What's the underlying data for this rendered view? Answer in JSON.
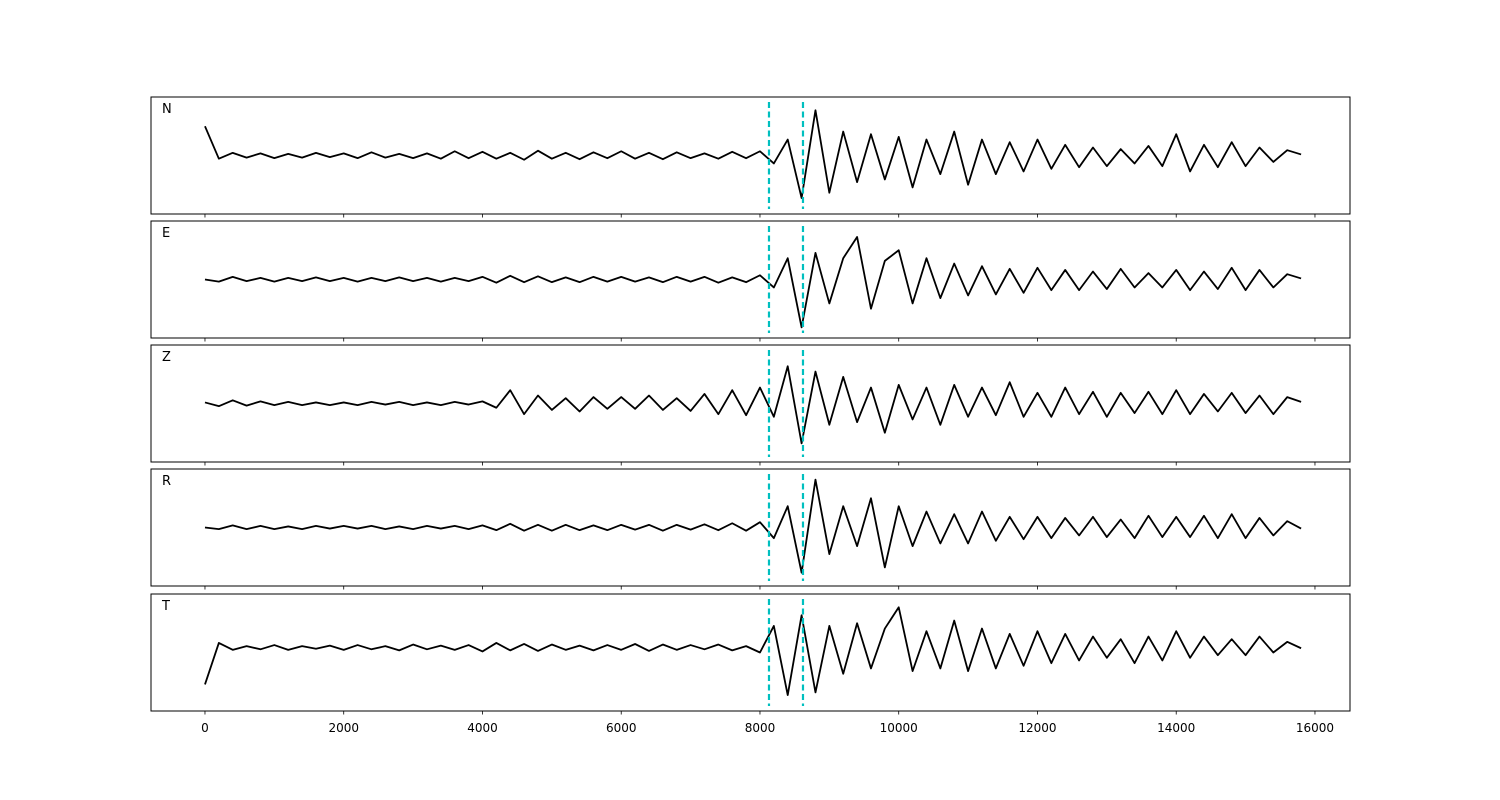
{
  "chart_data": [
    {
      "type": "line",
      "label": "N",
      "color": "#000000",
      "markers": [
        8130,
        8620
      ],
      "marker_color": "#00bfbf",
      "xlim": [
        -778,
        16505
      ],
      "ylim": [
        -1.1,
        1.1
      ],
      "xticks": [
        0,
        2000,
        4000,
        6000,
        8000,
        10000,
        12000,
        14000,
        16000
      ],
      "x": [
        0,
        200,
        400,
        600,
        800,
        1000,
        1200,
        1400,
        1600,
        1800,
        2000,
        2200,
        2400,
        2600,
        2800,
        3000,
        3200,
        3400,
        3600,
        3800,
        4000,
        4200,
        4400,
        4600,
        4800,
        5000,
        5200,
        5400,
        5600,
        5800,
        6000,
        6200,
        6400,
        6600,
        6800,
        7000,
        7200,
        7400,
        7600,
        7800,
        8000,
        8200,
        8400,
        8600,
        8800,
        9000,
        9200,
        9400,
        9600,
        9800,
        10000,
        10200,
        10400,
        10600,
        10800,
        11000,
        11200,
        11400,
        11600,
        11800,
        12000,
        12200,
        12400,
        12600,
        12800,
        13000,
        13200,
        13400,
        13600,
        13800,
        14000,
        14200,
        14400,
        14600,
        14800,
        15000,
        15200,
        15400,
        15600,
        15800
      ],
      "values": [
        0.55,
        -0.06,
        0.05,
        -0.04,
        0.04,
        -0.05,
        0.03,
        -0.04,
        0.05,
        -0.03,
        0.04,
        -0.05,
        0.06,
        -0.04,
        0.03,
        -0.05,
        0.04,
        -0.06,
        0.08,
        -0.05,
        0.07,
        -0.06,
        0.05,
        -0.08,
        0.09,
        -0.06,
        0.05,
        -0.07,
        0.06,
        -0.05,
        0.08,
        -0.06,
        0.05,
        -0.07,
        0.06,
        -0.05,
        0.04,
        -0.06,
        0.07,
        -0.05,
        0.08,
        -0.15,
        0.3,
        -0.8,
        0.85,
        -0.7,
        0.45,
        -0.5,
        0.4,
        -0.45,
        0.35,
        -0.6,
        0.3,
        -0.35,
        0.45,
        -0.55,
        0.3,
        -0.35,
        0.25,
        -0.3,
        0.3,
        -0.25,
        0.2,
        -0.22,
        0.15,
        -0.2,
        0.12,
        -0.15,
        0.18,
        -0.2,
        0.4,
        -0.3,
        0.2,
        -0.22,
        0.25,
        -0.2,
        0.15,
        -0.12,
        0.1,
        0.02
      ]
    },
    {
      "type": "line",
      "label": "E",
      "color": "#000000",
      "markers": [
        8130,
        8620
      ],
      "marker_color": "#00bfbf",
      "xlim": [
        -778,
        16505
      ],
      "ylim": [
        -1.1,
        1.1
      ],
      "xticks": [
        0,
        2000,
        4000,
        6000,
        8000,
        10000,
        12000,
        14000,
        16000
      ],
      "x": [
        0,
        200,
        400,
        600,
        800,
        1000,
        1200,
        1400,
        1600,
        1800,
        2000,
        2200,
        2400,
        2600,
        2800,
        3000,
        3200,
        3400,
        3600,
        3800,
        4000,
        4200,
        4400,
        4600,
        4800,
        5000,
        5200,
        5400,
        5600,
        5800,
        6000,
        6200,
        6400,
        6600,
        6800,
        7000,
        7200,
        7400,
        7600,
        7800,
        8000,
        8200,
        8400,
        8600,
        8800,
        9000,
        9200,
        9400,
        9600,
        9800,
        10000,
        10200,
        10400,
        10600,
        10800,
        11000,
        11200,
        11400,
        11600,
        11800,
        12000,
        12200,
        12400,
        12600,
        12800,
        13000,
        13200,
        13400,
        13600,
        13800,
        14000,
        14200,
        14400,
        14600,
        14800,
        15000,
        15200,
        15400,
        15600,
        15800
      ],
      "values": [
        0.0,
        -0.04,
        0.05,
        -0.03,
        0.03,
        -0.04,
        0.03,
        -0.03,
        0.04,
        -0.03,
        0.03,
        -0.04,
        0.03,
        -0.03,
        0.04,
        -0.03,
        0.03,
        -0.04,
        0.03,
        -0.03,
        0.05,
        -0.06,
        0.07,
        -0.05,
        0.06,
        -0.05,
        0.04,
        -0.05,
        0.05,
        -0.04,
        0.05,
        -0.04,
        0.04,
        -0.05,
        0.05,
        -0.04,
        0.05,
        -0.06,
        0.04,
        -0.05,
        0.08,
        -0.15,
        0.4,
        -0.9,
        0.5,
        -0.45,
        0.4,
        0.8,
        -0.55,
        0.35,
        0.55,
        -0.45,
        0.4,
        -0.35,
        0.3,
        -0.3,
        0.25,
        -0.28,
        0.2,
        -0.25,
        0.22,
        -0.2,
        0.18,
        -0.2,
        0.15,
        -0.18,
        0.2,
        -0.15,
        0.12,
        -0.15,
        0.18,
        -0.2,
        0.15,
        -0.18,
        0.22,
        -0.2,
        0.18,
        -0.15,
        0.1,
        0.02
      ]
    },
    {
      "type": "line",
      "label": "Z",
      "color": "#000000",
      "markers": [
        8130,
        8620
      ],
      "marker_color": "#00bfbf",
      "xlim": [
        -778,
        16505
      ],
      "ylim": [
        -1.1,
        1.1
      ],
      "xticks": [
        0,
        2000,
        4000,
        6000,
        8000,
        10000,
        12000,
        14000,
        16000
      ],
      "x": [
        0,
        200,
        400,
        600,
        800,
        1000,
        1200,
        1400,
        1600,
        1800,
        2000,
        2200,
        2400,
        2600,
        2800,
        3000,
        3200,
        3400,
        3600,
        3800,
        4000,
        4200,
        4400,
        4600,
        4800,
        5000,
        5200,
        5400,
        5600,
        5800,
        6000,
        6200,
        6400,
        6600,
        6800,
        7000,
        7200,
        7400,
        7600,
        7800,
        8000,
        8200,
        8400,
        8600,
        8800,
        9000,
        9200,
        9400,
        9600,
        9800,
        10000,
        10200,
        10400,
        10600,
        10800,
        11000,
        11200,
        11400,
        11600,
        11800,
        12000,
        12200,
        12400,
        12600,
        12800,
        13000,
        13200,
        13400,
        13600,
        13800,
        14000,
        14200,
        14400,
        14600,
        14800,
        15000,
        15200,
        15400,
        15600,
        15800
      ],
      "values": [
        0.02,
        -0.05,
        0.06,
        -0.04,
        0.04,
        -0.03,
        0.03,
        -0.03,
        0.02,
        -0.03,
        0.02,
        -0.03,
        0.03,
        -0.02,
        0.03,
        -0.03,
        0.02,
        -0.03,
        0.03,
        -0.02,
        0.04,
        -0.08,
        0.25,
        -0.2,
        0.15,
        -0.12,
        0.1,
        -0.15,
        0.12,
        -0.1,
        0.12,
        -0.1,
        0.15,
        -0.12,
        0.1,
        -0.14,
        0.18,
        -0.2,
        0.25,
        -0.22,
        0.3,
        -0.25,
        0.7,
        -0.75,
        0.6,
        -0.4,
        0.5,
        -0.35,
        0.3,
        -0.55,
        0.35,
        -0.3,
        0.3,
        -0.4,
        0.35,
        -0.25,
        0.3,
        -0.22,
        0.4,
        -0.25,
        0.2,
        -0.25,
        0.3,
        -0.2,
        0.22,
        -0.25,
        0.2,
        -0.18,
        0.22,
        -0.2,
        0.25,
        -0.2,
        0.18,
        -0.15,
        0.2,
        -0.18,
        0.15,
        -0.2,
        0.12,
        0.03
      ]
    },
    {
      "type": "line",
      "label": "R",
      "color": "#000000",
      "markers": [
        8130,
        8620
      ],
      "marker_color": "#00bfbf",
      "xlim": [
        -778,
        16505
      ],
      "ylim": [
        -1.1,
        1.1
      ],
      "xticks": [
        0,
        2000,
        4000,
        6000,
        8000,
        10000,
        12000,
        14000,
        16000
      ],
      "x": [
        0,
        200,
        400,
        600,
        800,
        1000,
        1200,
        1400,
        1600,
        1800,
        2000,
        2200,
        2400,
        2600,
        2800,
        3000,
        3200,
        3400,
        3600,
        3800,
        4000,
        4200,
        4400,
        4600,
        4800,
        5000,
        5200,
        5400,
        5600,
        5800,
        6000,
        6200,
        6400,
        6600,
        6800,
        7000,
        7200,
        7400,
        7600,
        7800,
        8000,
        8200,
        8400,
        8600,
        8800,
        9000,
        9200,
        9400,
        9600,
        9800,
        10000,
        10200,
        10400,
        10600,
        10800,
        11000,
        11200,
        11400,
        11600,
        11800,
        12000,
        12200,
        12400,
        12600,
        12800,
        13000,
        13200,
        13400,
        13600,
        13800,
        14000,
        14200,
        14400,
        14600,
        14800,
        15000,
        15200,
        15400,
        15600,
        15800
      ],
      "values": [
        0.0,
        -0.03,
        0.04,
        -0.03,
        0.03,
        -0.03,
        0.02,
        -0.03,
        0.03,
        -0.02,
        0.03,
        -0.02,
        0.03,
        -0.03,
        0.02,
        -0.03,
        0.03,
        -0.02,
        0.03,
        -0.03,
        0.04,
        -0.05,
        0.07,
        -0.06,
        0.05,
        -0.06,
        0.05,
        -0.05,
        0.04,
        -0.05,
        0.05,
        -0.04,
        0.05,
        -0.06,
        0.05,
        -0.04,
        0.06,
        -0.05,
        0.08,
        -0.06,
        0.1,
        -0.2,
        0.4,
        -0.85,
        0.9,
        -0.5,
        0.4,
        -0.35,
        0.55,
        -0.75,
        0.4,
        -0.35,
        0.3,
        -0.3,
        0.25,
        -0.3,
        0.3,
        -0.25,
        0.2,
        -0.22,
        0.2,
        -0.2,
        0.18,
        -0.15,
        0.2,
        -0.18,
        0.15,
        -0.2,
        0.22,
        -0.18,
        0.2,
        -0.18,
        0.22,
        -0.2,
        0.25,
        -0.2,
        0.18,
        -0.15,
        0.12,
        -0.02
      ]
    },
    {
      "type": "line",
      "label": "T",
      "color": "#000000",
      "markers": [
        8130,
        8620
      ],
      "marker_color": "#00bfbf",
      "xlim": [
        -778,
        16505
      ],
      "ylim": [
        -1.1,
        1.1
      ],
      "xticks": [
        0,
        2000,
        4000,
        6000,
        8000,
        10000,
        12000,
        14000,
        16000
      ],
      "x": [
        0,
        200,
        400,
        600,
        800,
        1000,
        1200,
        1400,
        1600,
        1800,
        2000,
        2200,
        2400,
        2600,
        2800,
        3000,
        3200,
        3400,
        3600,
        3800,
        4000,
        4200,
        4400,
        4600,
        4800,
        5000,
        5200,
        5400,
        5600,
        5800,
        6000,
        6200,
        6400,
        6600,
        6800,
        7000,
        7200,
        7400,
        7600,
        7800,
        8000,
        8200,
        8400,
        8600,
        8800,
        9000,
        9200,
        9400,
        9600,
        9800,
        10000,
        10200,
        10400,
        10600,
        10800,
        11000,
        11200,
        11400,
        11600,
        11800,
        12000,
        12200,
        12400,
        12600,
        12800,
        13000,
        13200,
        13400,
        13600,
        13800,
        14000,
        14200,
        14400,
        14600,
        14800,
        15000,
        15200,
        15400,
        15600,
        15800
      ],
      "values": [
        -0.6,
        0.18,
        0.05,
        0.12,
        0.06,
        0.14,
        0.05,
        0.12,
        0.07,
        0.13,
        0.05,
        0.14,
        0.06,
        0.12,
        0.04,
        0.15,
        0.06,
        0.13,
        0.05,
        0.14,
        0.02,
        0.18,
        0.04,
        0.16,
        0.03,
        0.15,
        0.05,
        0.13,
        0.04,
        0.14,
        0.05,
        0.16,
        0.03,
        0.15,
        0.05,
        0.14,
        0.06,
        0.15,
        0.04,
        0.12,
        0.0,
        0.5,
        -0.8,
        0.7,
        -0.75,
        0.5,
        -0.4,
        0.55,
        -0.3,
        0.45,
        0.85,
        -0.35,
        0.4,
        -0.3,
        0.6,
        -0.35,
        0.45,
        -0.3,
        0.35,
        -0.25,
        0.4,
        -0.2,
        0.35,
        -0.15,
        0.3,
        -0.1,
        0.25,
        -0.2,
        0.3,
        -0.15,
        0.4,
        -0.1,
        0.3,
        -0.05,
        0.25,
        -0.05,
        0.3,
        0.0,
        0.2,
        0.08
      ]
    }
  ]
}
